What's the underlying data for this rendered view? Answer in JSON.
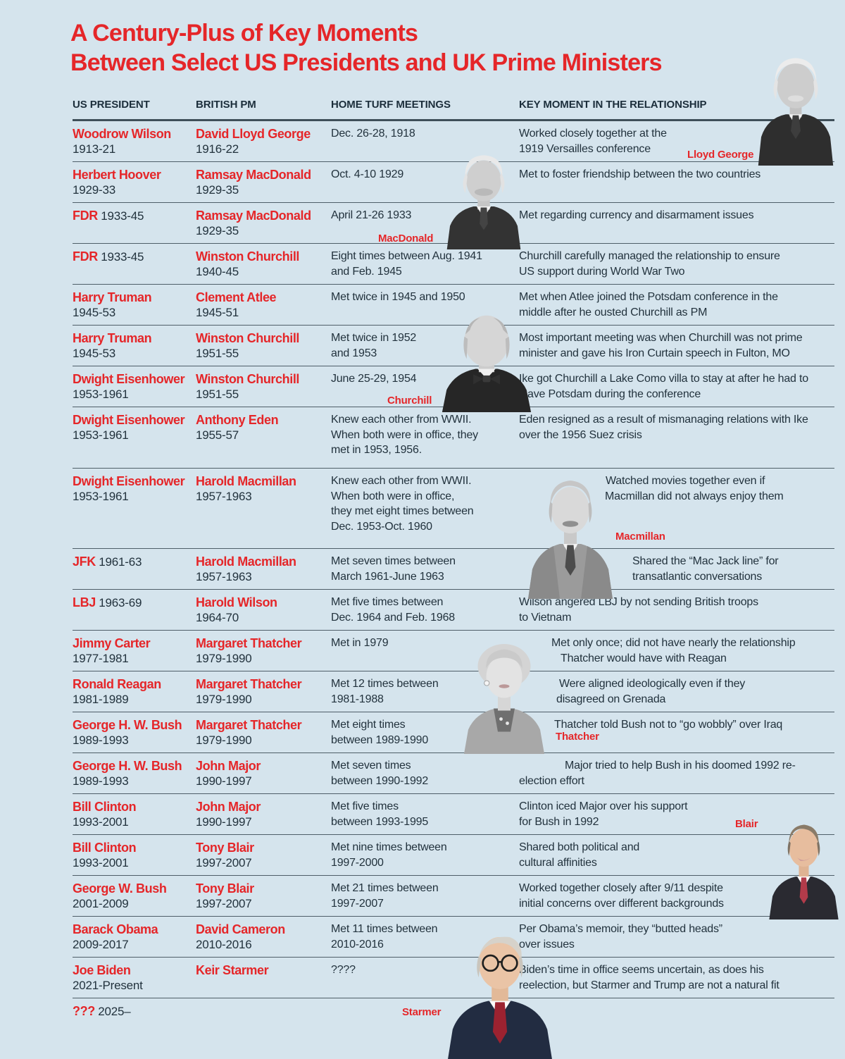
{
  "title": {
    "line1": "A Century-Plus of Key Moments",
    "line2": "Between Select US Presidents and UK Prime Ministers"
  },
  "columns": [
    "US PRESIDENT",
    "BRITISH PM",
    "HOME TURF MEETINGS",
    "KEY MOMENT IN THE RELATIONSHIP"
  ],
  "colors": {
    "background": "#d5e4ed",
    "accent_red": "#e52629",
    "text_dark": "#22323d",
    "rule": "#4e5e68"
  },
  "photos": [
    {
      "label": "Lloyd George"
    },
    {
      "label": "MacDonald"
    },
    {
      "label": "Churchill"
    },
    {
      "label": "Macmillan"
    },
    {
      "label": "Thatcher"
    },
    {
      "label": "Blair"
    },
    {
      "label": "Starmer"
    }
  ],
  "rows": [
    {
      "president": "Woodrow Wilson",
      "president_years": "1913-21",
      "pm": "David Lloyd George",
      "pm_years": "1916-22",
      "meetings": [
        "Dec. 26-28, 1918"
      ],
      "key": [
        "Worked closely together at the",
        "1919 Versailles conference"
      ]
    },
    {
      "president": "Herbert Hoover",
      "president_years": "1929-33",
      "pm": "Ramsay MacDonald",
      "pm_years": "1929-35",
      "meetings": [
        "Oct. 4-10 1929"
      ],
      "key": [
        "Met to foster friendship between the two countries"
      ]
    },
    {
      "president": "FDR",
      "president_years": "1933-45",
      "president_inline": true,
      "pm": "Ramsay MacDonald",
      "pm_years": "1929-35",
      "meetings": [
        "April 21-26 1933"
      ],
      "key": [
        "Met regarding currency and disarmament issues"
      ]
    },
    {
      "president": "FDR",
      "president_years": "1933-45",
      "president_inline": true,
      "pm": "Winston Churchill",
      "pm_years": "1940-45",
      "meetings": [
        "Eight times between Aug. 1941",
        "and Feb. 1945"
      ],
      "key": [
        "Churchill carefully managed the relationship to ensure",
        "US support during World War Two"
      ]
    },
    {
      "president": "Harry Truman",
      "president_years": "1945-53",
      "pm": "Clement Atlee",
      "pm_years": "1945-51",
      "meetings": [
        "Met twice in 1945 and 1950"
      ],
      "key": [
        "Met when Atlee joined the Potsdam conference in the",
        "middle after he ousted Churchill as PM"
      ]
    },
    {
      "president": "Harry Truman",
      "president_years": "1945-53",
      "pm": "Winston Churchill",
      "pm_years": "1951-55",
      "meetings": [
        "Met twice in 1952",
        "and 1953"
      ],
      "key": [
        "Most important meeting was when Churchill was not prime",
        "minister and gave his Iron Curtain speech in Fulton, MO"
      ]
    },
    {
      "president": "Dwight Eisenhower",
      "president_years": "1953-1961",
      "pm": "Winston Churchill",
      "pm_years": "1951-55",
      "meetings": [
        "June 25-29, 1954"
      ],
      "key": [
        "Ike got Churchill a Lake Como villa to stay at after he had to",
        "leave Potsdam during the conference"
      ]
    },
    {
      "president": "Dwight Eisenhower",
      "president_years": "1953-1961",
      "pm": "Anthony Eden",
      "pm_years": "1955-57",
      "meetings": [
        "Knew each other from WWII.",
        "When both were in office, they",
        "met in 1953, 1956."
      ],
      "key": [
        "Eden resigned as a result of mismanaging relations with Ike",
        "over the 1956 Suez crisis"
      ]
    },
    {
      "president": "Dwight Eisenhower",
      "president_years": "1953-1961",
      "pm": "Harold Macmillan",
      "pm_years": "1957-1963",
      "meetings": [
        "Knew each other from WWII.",
        "When both were in office,",
        "they met eight times between",
        "Dec. 1953-Oct. 1960"
      ],
      "key": [
        "Watched movies together even if",
        "Macmillan did not always enjoy them"
      ]
    },
    {
      "president": "JFK",
      "president_years": "1961-63",
      "president_inline": true,
      "pm": "Harold Macmillan",
      "pm_years": "1957-1963",
      "meetings": [
        "Met seven times between",
        "March 1961-June 1963"
      ],
      "key": [
        "Shared the “Mac Jack line” for",
        "transatlantic conversations"
      ]
    },
    {
      "president": "LBJ",
      "president_years": "1963-69",
      "president_inline": true,
      "pm": "Harold Wilson",
      "pm_years": "1964-70",
      "meetings": [
        "Met five times between",
        "Dec. 1964 and Feb. 1968"
      ],
      "key": [
        "Wilson angered LBJ by not sending British troops",
        "to Vietnam"
      ]
    },
    {
      "president": "Jimmy Carter",
      "president_years": "1977-1981",
      "pm": "Margaret Thatcher",
      "pm_years": "1979-1990",
      "meetings": [
        "Met in 1979"
      ],
      "key": [
        "Met only once; did not have nearly the relationship",
        "Thatcher would have with Reagan"
      ]
    },
    {
      "president": "Ronald Reagan",
      "president_years": "1981-1989",
      "pm": "Margaret Thatcher",
      "pm_years": "1979-1990",
      "meetings": [
        "Met 12 times between",
        "1981-1988"
      ],
      "key": [
        "Were aligned ideologically even if they",
        "disagreed on Grenada"
      ]
    },
    {
      "president": "George H. W. Bush",
      "president_years": "1989-1993",
      "pm": "Margaret Thatcher",
      "pm_years": "1979-1990",
      "meetings": [
        "Met eight times",
        "between 1989-1990"
      ],
      "key": [
        "Thatcher told Bush not to “go wobbly” over Iraq"
      ]
    },
    {
      "president": "George H. W. Bush",
      "president_years": "1989-1993",
      "pm": "John Major",
      "pm_years": "1990-1997",
      "meetings": [
        "Met seven times",
        "between 1990-1992"
      ],
      "key": [
        "Major tried to help Bush in his doomed 1992 re-",
        "election effort"
      ]
    },
    {
      "president": "Bill Clinton",
      "president_years": "1993-2001",
      "pm": "John Major",
      "pm_years": "1990-1997",
      "meetings": [
        "Met five times",
        "between 1993-1995"
      ],
      "key": [
        "Clinton iced Major over his support",
        "for Bush in 1992"
      ]
    },
    {
      "president": "Bill Clinton",
      "president_years": "1993-2001",
      "pm": "Tony Blair",
      "pm_years": "1997-2007",
      "meetings": [
        "Met nine times between",
        "1997-2000"
      ],
      "key": [
        "Shared both political and",
        "cultural affinities"
      ]
    },
    {
      "president": "George W. Bush",
      "president_years": "2001-2009",
      "pm": "Tony Blair",
      "pm_years": "1997-2007",
      "meetings": [
        "Met 21 times between",
        "1997-2007"
      ],
      "key": [
        "Worked together closely after 9/11 despite",
        "initial concerns over different backgrounds"
      ]
    },
    {
      "president": "Barack Obama",
      "president_years": "2009-2017",
      "pm": "David Cameron",
      "pm_years": "2010-2016",
      "meetings": [
        "Met 11 times between",
        "2010-2016"
      ],
      "key": [
        "Per Obama’s memoir, they “butted heads”",
        "over issues"
      ]
    },
    {
      "president": "Joe Biden",
      "president_years": "2021-Present",
      "pm": "Keir Starmer",
      "meetings": [
        "????"
      ],
      "key": [
        "Biden’s time in office seems uncertain, as does his",
        "reelection, but Starmer and Trump are not a natural fit"
      ]
    },
    {
      "president": "???",
      "president_years": "2025–",
      "president_inline": true,
      "meetings": [],
      "key": []
    }
  ],
  "chart_data": {
    "type": "table",
    "title": "A Century-Plus of Key Moments Between Select US Presidents and UK Prime Ministers",
    "columns": [
      "US PRESIDENT",
      "BRITISH PM",
      "HOME TURF MEETINGS",
      "KEY MOMENT IN THE RELATIONSHIP"
    ],
    "rows": [
      [
        "Woodrow Wilson 1913-21",
        "David Lloyd George 1916-22",
        "Dec. 26-28, 1918",
        "Worked closely together at the 1919 Versailles conference"
      ],
      [
        "Herbert Hoover 1929-33",
        "Ramsay MacDonald 1929-35",
        "Oct. 4-10 1929",
        "Met to foster friendship between the two countries"
      ],
      [
        "FDR 1933-45",
        "Ramsay MacDonald 1929-35",
        "April 21-26 1933",
        "Met regarding currency and disarmament issues"
      ],
      [
        "FDR 1933-45",
        "Winston Churchill 1940-45",
        "Eight times between Aug. 1941 and Feb. 1945",
        "Churchill carefully managed the relationship to ensure US support during World War Two"
      ],
      [
        "Harry Truman 1945-53",
        "Clement Atlee 1945-51",
        "Met twice in 1945 and 1950",
        "Met when Atlee joined the Potsdam conference in the middle after he ousted Churchill as PM"
      ],
      [
        "Harry Truman 1945-53",
        "Winston Churchill 1951-55",
        "Met twice in 1952 and 1953",
        "Most important meeting was when Churchill was not prime minister and gave his Iron Curtain speech in Fulton, MO"
      ],
      [
        "Dwight Eisenhower 1953-1961",
        "Winston Churchill 1951-55",
        "June 25-29, 1954",
        "Ike got Churchill a Lake Como villa to stay at after he had to leave Potsdam during the conference"
      ],
      [
        "Dwight Eisenhower 1953-1961",
        "Anthony Eden 1955-57",
        "Knew each other from WWII. When both were in office, they met in 1953, 1956.",
        "Eden resigned as a result of mismanaging relations with Ike over the 1956 Suez crisis"
      ],
      [
        "Dwight Eisenhower 1953-1961",
        "Harold Macmillan 1957-1963",
        "Knew each other from WWII. When both were in office, they met eight times between Dec. 1953-Oct. 1960",
        "Watched movies together even if Macmillan did not always enjoy them"
      ],
      [
        "JFK 1961-63",
        "Harold Macmillan 1957-1963",
        "Met seven times between March 1961-June 1963",
        "Shared the “Mac Jack line” for transatlantic conversations"
      ],
      [
        "LBJ 1963-69",
        "Harold Wilson 1964-70",
        "Met five times between Dec. 1964 and Feb. 1968",
        "Wilson angered LBJ by not sending British troops to Vietnam"
      ],
      [
        "Jimmy Carter 1977-1981",
        "Margaret Thatcher 1979-1990",
        "Met in 1979",
        "Met only once; did not have nearly the relationship Thatcher would have with Reagan"
      ],
      [
        "Ronald Reagan 1981-1989",
        "Margaret Thatcher 1979-1990",
        "Met 12 times between 1981-1988",
        "Were aligned ideologically even if they disagreed on Grenada"
      ],
      [
        "George H. W. Bush 1989-1993",
        "Margaret Thatcher 1979-1990",
        "Met eight times between 1989-1990",
        "Thatcher told Bush not to “go wobbly” over Iraq"
      ],
      [
        "George H. W. Bush 1989-1993",
        "John Major 1990-1997",
        "Met seven times between 1990-1992",
        "Major tried to help Bush in his doomed 1992 re-election effort"
      ],
      [
        "Bill Clinton 1993-2001",
        "John Major 1990-1997",
        "Met five times between 1993-1995",
        "Clinton iced Major over his support for Bush in 1992"
      ],
      [
        "Bill Clinton 1993-2001",
        "Tony Blair 1997-2007",
        "Met nine times between 1997-2000",
        "Shared both political and cultural affinities"
      ],
      [
        "George W. Bush 2001-2009",
        "Tony Blair 1997-2007",
        "Met 21 times between 1997-2007",
        "Worked together closely after 9/11 despite initial concerns over different backgrounds"
      ],
      [
        "Barack Obama 2009-2017",
        "David Cameron 2010-2016",
        "Met 11 times between 2010-2016",
        "Per Obama’s memoir, they “butted heads” over issues"
      ],
      [
        "Joe Biden 2021-Present",
        "Keir Starmer",
        "????",
        "Biden’s time in office seems uncertain, as does his reelection, but Starmer and Trump are not a natural fit"
      ],
      [
        "??? 2025–",
        "",
        "",
        ""
      ]
    ]
  }
}
